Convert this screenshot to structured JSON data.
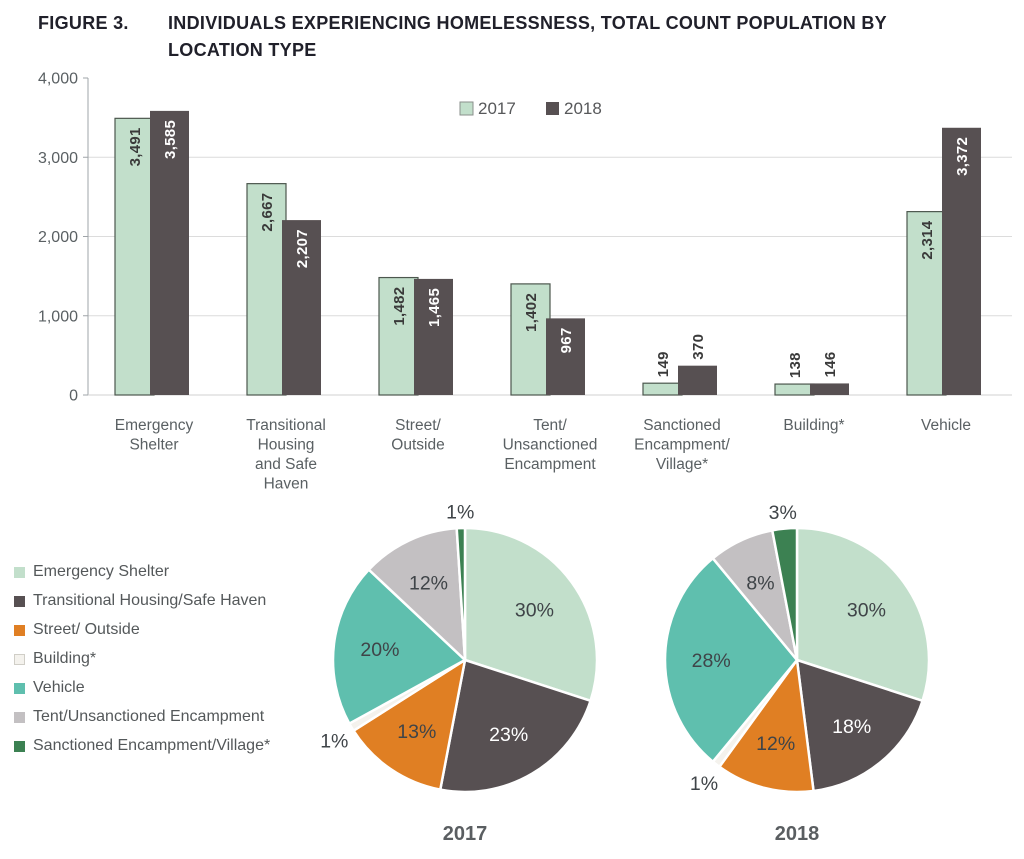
{
  "figure": {
    "label": "FIGURE 3.",
    "title_line1": "INDIVIDUALS EXPERIENCING HOMELESSNESS, TOTAL COUNT POPULATION BY",
    "title_line2": "LOCATION TYPE"
  },
  "colors": {
    "emergency_shelter": "#c2dfcb",
    "emergency_shelter_border": "#4c574e",
    "transitional_housing": "#575052",
    "street_outside": "#e07f23",
    "building": "#f4f2ed",
    "building_border": "#d0cec7",
    "vehicle": "#5fbfae",
    "tent_unsanctioned": "#c3c0c2",
    "sanctioned_village": "#3c8152",
    "axis_text": "#5a6063",
    "grid_line": "#dcdcdc",
    "axis_line": "#9fa4a8",
    "baseline": "#d2d2d2",
    "title_text": "#20202a",
    "label_dark": "#3a3a3a",
    "label_light": "#ffffff",
    "pie_label": "#3f4448",
    "caption": "#5a5e61"
  },
  "chart_data": [
    {
      "type": "bar",
      "title": "Individuals experiencing homelessness, total count population by location type",
      "categories": [
        [
          "Emergency",
          "Shelter"
        ],
        [
          "Transitional",
          "Housing",
          "and Safe",
          "Haven"
        ],
        [
          "Street/",
          "Outside"
        ],
        [
          "Tent/",
          "Unsanctioned",
          "Encampment"
        ],
        [
          "Sanctioned",
          "Encampment/",
          "Village*"
        ],
        [
          "Building*"
        ],
        [
          "Vehicle"
        ]
      ],
      "series": [
        {
          "name": "2017",
          "color_key": "emergency_shelter",
          "values": [
            3491,
            2667,
            1482,
            1402,
            149,
            138,
            2314
          ],
          "labels": [
            "3,491",
            "2,667",
            "1,482",
            "1,402",
            "149",
            "138",
            "2,314"
          ]
        },
        {
          "name": "2018",
          "color_key": "transitional_housing",
          "values": [
            3585,
            2207,
            1465,
            967,
            370,
            146,
            3372
          ],
          "labels": [
            "3,585",
            "2,207",
            "1,465",
            "967",
            "370",
            "146",
            "3,372"
          ]
        }
      ],
      "ylim": [
        0,
        4000
      ],
      "yticks": [
        {
          "value": 0,
          "label": "0"
        },
        {
          "value": 1000,
          "label": "1,000"
        },
        {
          "value": 2000,
          "label": "2,000"
        },
        {
          "value": 3000,
          "label": "3,000"
        },
        {
          "value": 4000,
          "label": "4,000"
        }
      ],
      "grid": true,
      "legend_position": "top-center"
    },
    {
      "type": "pie",
      "title": "2017",
      "unit": "%",
      "labels": [
        "Emergency Shelter",
        "Transitional Housing/Safe Haven",
        "Street/ Outside",
        "Building*",
        "Vehicle",
        "Tent/Unsanctioned Encampment",
        "Sanctioned Encampment/Village*"
      ],
      "values": [
        30,
        23,
        13,
        1,
        20,
        12,
        1
      ],
      "color_keys": [
        "emergency_shelter",
        "transitional_housing",
        "street_outside",
        "building",
        "vehicle",
        "tent_unsanctioned",
        "sanctioned_village"
      ]
    },
    {
      "type": "pie",
      "title": "2018",
      "unit": "%",
      "labels": [
        "Emergency Shelter",
        "Transitional Housing/Safe Haven",
        "Street/ Outside",
        "Building*",
        "Vehicle",
        "Tent/Unsanctioned Encampment",
        "Sanctioned Encampment/Village*"
      ],
      "values": [
        30,
        18,
        12,
        1,
        28,
        8,
        3
      ],
      "color_keys": [
        "emergency_shelter",
        "transitional_housing",
        "street_outside",
        "building",
        "vehicle",
        "tent_unsanctioned",
        "sanctioned_village"
      ]
    }
  ],
  "pie_legend": {
    "items": [
      {
        "label": "Emergency Shelter",
        "color_key": "emergency_shelter"
      },
      {
        "label": "Transitional Housing/Safe Haven",
        "color_key": "transitional_housing"
      },
      {
        "label": "Street/ Outside",
        "color_key": "street_outside"
      },
      {
        "label": "Building*",
        "color_key": "building"
      },
      {
        "label": "Vehicle",
        "color_key": "vehicle"
      },
      {
        "label": "Tent/Unsanctioned Encampment",
        "color_key": "tent_unsanctioned"
      },
      {
        "label": "Sanctioned Encampment/Village*",
        "color_key": "sanctioned_village"
      }
    ]
  }
}
